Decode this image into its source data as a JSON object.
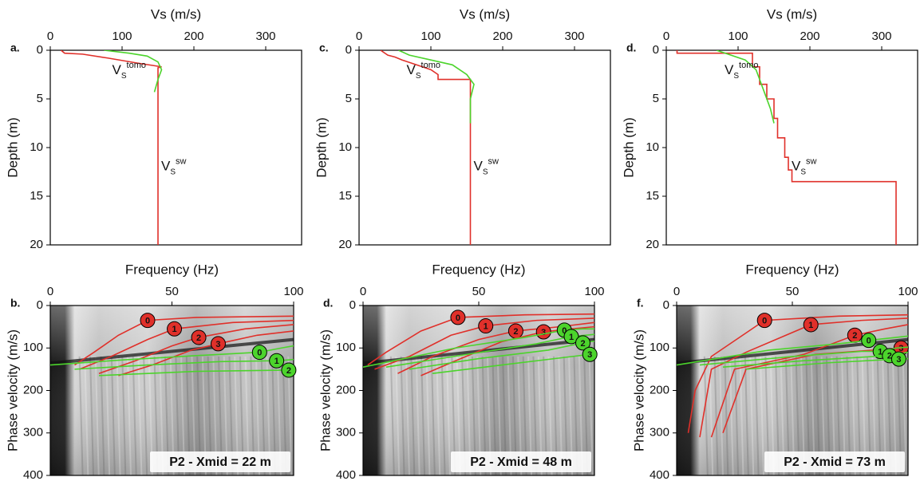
{
  "chart_data": [
    {
      "type": "line",
      "panel": "a.",
      "xlabel": "Vs (m/s)",
      "ylabel": "Depth (m)",
      "xaxis_position": "top",
      "y_inverted": true,
      "xlim": [
        0,
        350
      ],
      "xticks": [
        0,
        100,
        200,
        300
      ],
      "ylim": [
        0,
        20
      ],
      "yticks": [
        0,
        5,
        10,
        15,
        20
      ],
      "symbol": "V",
      "subscript": "S",
      "series": [
        {
          "name": "sw",
          "color": "#e0302a",
          "x": [
            15,
            20,
            45,
            80,
            120,
            155,
            150,
            150
          ],
          "values": [
            0,
            0.3,
            0.4,
            0.8,
            1.3,
            1.7,
            1.8,
            20
          ]
        },
        {
          "name": "tomo",
          "color": "#4cd42c",
          "x": [
            75,
            110,
            135,
            150,
            155,
            150,
            145
          ],
          "values": [
            0,
            0.3,
            0.6,
            1.2,
            2,
            3,
            4.3
          ]
        }
      ]
    },
    {
      "type": "line",
      "panel": "c.",
      "xlabel": "Vs (m/s)",
      "ylabel": "Depth (m)",
      "xaxis_position": "top",
      "y_inverted": true,
      "xlim": [
        0,
        350
      ],
      "xticks": [
        0,
        100,
        200,
        300
      ],
      "ylim": [
        0,
        20
      ],
      "yticks": [
        0,
        5,
        10,
        15,
        20
      ],
      "symbol": "V",
      "subscript": "S",
      "series": [
        {
          "name": "sw",
          "color": "#e0302a",
          "x": [
            30,
            40,
            50,
            60,
            80,
            100,
            110,
            110,
            155,
            155
          ],
          "values": [
            0,
            0.5,
            0.7,
            1,
            1.5,
            2,
            2.5,
            3,
            3,
            20
          ]
        },
        {
          "name": "tomo",
          "color": "#4cd42c",
          "x": [
            55,
            70,
            100,
            130,
            150,
            160,
            155,
            155
          ],
          "values": [
            0,
            0.5,
            1,
            1.5,
            2.5,
            3.5,
            5,
            7.5
          ]
        }
      ]
    },
    {
      "type": "line",
      "panel": "d.",
      "xlabel": "Vs (m/s)",
      "ylabel": "Depth (m)",
      "xaxis_position": "top",
      "y_inverted": true,
      "xlim": [
        0,
        350
      ],
      "xticks": [
        0,
        100,
        200,
        300
      ],
      "ylim": [
        0,
        20
      ],
      "yticks": [
        0,
        5,
        10,
        15,
        20
      ],
      "symbol": "V",
      "subscript": "S",
      "series": [
        {
          "name": "sw",
          "color": "#e0302a",
          "x": [
            15,
            15,
            120,
            120,
            130,
            130,
            140,
            140,
            150,
            150,
            155,
            155,
            165,
            165,
            170,
            170,
            175,
            175,
            320,
            320
          ],
          "values": [
            0,
            0.3,
            0.3,
            1.7,
            1.7,
            3.5,
            3.5,
            5,
            5,
            7,
            7,
            9,
            9,
            11,
            11,
            12.3,
            12.3,
            13.5,
            13.5,
            20
          ]
        },
        {
          "name": "tomo",
          "color": "#4cd42c",
          "x": [
            70,
            110,
            125,
            135,
            145,
            150
          ],
          "values": [
            0,
            1,
            2,
            4,
            6,
            7.5
          ]
        }
      ]
    },
    {
      "type": "line",
      "panel": "b.",
      "xlabel": "Frequency (Hz)",
      "ylabel": "Phase velocity (m/s)",
      "xaxis_position": "top",
      "y_inverted": true,
      "xlim": [
        0,
        100
      ],
      "xticks": [
        0,
        50,
        100
      ],
      "ylim": [
        0,
        400
      ],
      "yticks": [
        0,
        100,
        200,
        300,
        400
      ],
      "caption": "P2 - Xmid = 22 m",
      "series": [
        {
          "name": "0",
          "color": "#e0302a",
          "x": [
            10,
            18,
            28,
            40,
            60,
            100
          ],
          "values": [
            140,
            110,
            70,
            35,
            28,
            25
          ]
        },
        {
          "name": "1",
          "color": "#e0302a",
          "x": [
            12,
            25,
            40,
            51,
            75,
            100
          ],
          "values": [
            150,
            120,
            80,
            55,
            40,
            35
          ]
        },
        {
          "name": "2",
          "color": "#e0302a",
          "x": [
            20,
            35,
            50,
            61,
            80,
            100
          ],
          "values": [
            160,
            130,
            95,
            75,
            55,
            45
          ]
        },
        {
          "name": "3",
          "color": "#e0302a",
          "x": [
            28,
            42,
            58,
            69,
            85,
            100
          ],
          "values": [
            165,
            140,
            105,
            90,
            70,
            60
          ]
        },
        {
          "name": "0",
          "color": "#4cd42c",
          "x": [
            0,
            30,
            60,
            86,
            95,
            100
          ],
          "values": [
            140,
            128,
            118,
            110,
            100,
            95
          ]
        },
        {
          "name": "1",
          "color": "#4cd42c",
          "x": [
            10,
            40,
            70,
            93,
            98,
            100
          ],
          "values": [
            150,
            140,
            132,
            130,
            128,
            127
          ]
        },
        {
          "name": "2",
          "color": "#4cd42c",
          "x": [
            20,
            60,
            98,
            100
          ],
          "values": [
            165,
            155,
            152,
            152
          ]
        }
      ]
    },
    {
      "type": "line",
      "panel": "d.",
      "xlabel": "Frequency (Hz)",
      "ylabel": "Phase velocity (m/s)",
      "xaxis_position": "top",
      "y_inverted": true,
      "xlim": [
        0,
        100
      ],
      "xticks": [
        0,
        50,
        100
      ],
      "ylim": [
        0,
        400
      ],
      "yticks": [
        0,
        100,
        200,
        300,
        400
      ],
      "caption": "P2 - Xmid = 48 m",
      "series": [
        {
          "name": "0",
          "color": "#e0302a",
          "x": [
            2,
            10,
            25,
            41,
            70,
            100
          ],
          "values": [
            140,
            110,
            60,
            28,
            22,
            20
          ]
        },
        {
          "name": "1",
          "color": "#e0302a",
          "x": [
            5,
            20,
            38,
            53,
            75,
            100
          ],
          "values": [
            150,
            120,
            70,
            48,
            35,
            30
          ]
        },
        {
          "name": "2",
          "color": "#e0302a",
          "x": [
            15,
            30,
            50,
            66,
            85,
            100
          ],
          "values": [
            160,
            120,
            80,
            60,
            50,
            40
          ]
        },
        {
          "name": "3",
          "color": "#e0302a",
          "x": [
            25,
            40,
            60,
            78,
            90,
            100
          ],
          "values": [
            165,
            130,
            85,
            62,
            55,
            50
          ]
        },
        {
          "name": "0",
          "color": "#4cd42c",
          "x": [
            0,
            40,
            70,
            87,
            95,
            100
          ],
          "values": [
            145,
            100,
            75,
            58,
            55,
            55
          ]
        },
        {
          "name": "1",
          "color": "#4cd42c",
          "x": [
            10,
            45,
            75,
            90,
            96,
            100
          ],
          "values": [
            145,
            115,
            90,
            73,
            70,
            68
          ]
        },
        {
          "name": "2",
          "color": "#4cd42c",
          "x": [
            20,
            50,
            80,
            95,
            98,
            100
          ],
          "values": [
            150,
            125,
            105,
            88,
            85,
            84
          ]
        },
        {
          "name": "3",
          "color": "#4cd42c",
          "x": [
            30,
            60,
            98,
            100
          ],
          "values": [
            160,
            140,
            115,
            113
          ]
        }
      ]
    },
    {
      "type": "line",
      "panel": "f.",
      "xlabel": "Frequency (Hz)",
      "ylabel": "Phase velocity (m/s)",
      "xaxis_position": "top",
      "y_inverted": true,
      "xlim": [
        0,
        100
      ],
      "xticks": [
        0,
        50,
        100
      ],
      "ylim": [
        0,
        400
      ],
      "yticks": [
        0,
        100,
        200,
        300,
        400
      ],
      "caption": "P2 - Xmid = 73 m",
      "series": [
        {
          "name": "0",
          "color": "#e0302a",
          "x": [
            5,
            8,
            15,
            38,
            70,
            100
          ],
          "values": [
            300,
            200,
            120,
            35,
            25,
            22
          ]
        },
        {
          "name": "1",
          "color": "#e0302a",
          "x": [
            10,
            15,
            30,
            58,
            80,
            100
          ],
          "values": [
            310,
            150,
            110,
            45,
            35,
            30
          ]
        },
        {
          "name": "2",
          "color": "#e0302a",
          "x": [
            15,
            25,
            55,
            77,
            90,
            100
          ],
          "values": [
            310,
            150,
            115,
            70,
            55,
            45
          ]
        },
        {
          "name": "3",
          "color": "#e0302a",
          "x": [
            20,
            30,
            60,
            97,
            99,
            100
          ],
          "values": [
            300,
            150,
            115,
            100,
            100,
            100
          ]
        },
        {
          "name": "0",
          "color": "#4cd42c",
          "x": [
            0,
            40,
            70,
            83,
            95,
            100
          ],
          "values": [
            140,
            105,
            90,
            82,
            75,
            72
          ]
        },
        {
          "name": "1",
          "color": "#4cd42c",
          "x": [
            10,
            50,
            80,
            88,
            95,
            100
          ],
          "values": [
            140,
            120,
            108,
            108,
            100,
            98
          ]
        },
        {
          "name": "2",
          "color": "#4cd42c",
          "x": [
            20,
            55,
            85,
            92,
            97,
            100
          ],
          "values": [
            145,
            130,
            120,
            118,
            113,
            110
          ]
        },
        {
          "name": "3",
          "color": "#4cd42c",
          "x": [
            30,
            65,
            96,
            100
          ],
          "values": [
            150,
            135,
            126,
            125
          ]
        }
      ]
    }
  ]
}
